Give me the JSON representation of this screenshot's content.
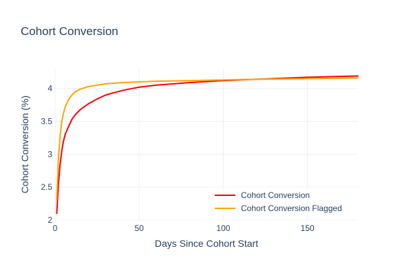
{
  "chart_data": {
    "type": "line",
    "title": "Cohort Conversion",
    "xlabel": "Days Since Cohort Start",
    "ylabel": "Cohort Conversion (%)",
    "xlim": [
      0,
      180
    ],
    "ylim": [
      2,
      4.3
    ],
    "xticks": [
      0,
      50,
      100,
      150
    ],
    "yticks": [
      2,
      2.5,
      3,
      3.5,
      4
    ],
    "grid": true,
    "legend_position": "bottom-right",
    "series": [
      {
        "name": "Cohort Conversion",
        "color": "#ff0000",
        "x": [
          1,
          2,
          3,
          4,
          5,
          6,
          8,
          10,
          12,
          15,
          20,
          25,
          30,
          40,
          50,
          60,
          70,
          80,
          100,
          120,
          150,
          180
        ],
        "y": [
          2.1,
          2.55,
          2.85,
          3.05,
          3.2,
          3.3,
          3.42,
          3.53,
          3.6,
          3.68,
          3.77,
          3.84,
          3.9,
          3.97,
          4.02,
          4.05,
          4.07,
          4.09,
          4.12,
          4.14,
          4.17,
          4.19
        ]
      },
      {
        "name": "Cohort Conversion Flagged",
        "color": "#ffa500",
        "x": [
          1,
          2,
          3,
          4,
          5,
          6,
          8,
          10,
          12,
          15,
          20,
          25,
          30,
          40,
          50,
          60,
          80,
          100,
          120,
          150,
          180
        ],
        "y": [
          2.32,
          2.95,
          3.28,
          3.5,
          3.62,
          3.72,
          3.83,
          3.9,
          3.95,
          3.99,
          4.03,
          4.05,
          4.07,
          4.09,
          4.1,
          4.11,
          4.12,
          4.13,
          4.14,
          4.15,
          4.16
        ]
      }
    ]
  }
}
